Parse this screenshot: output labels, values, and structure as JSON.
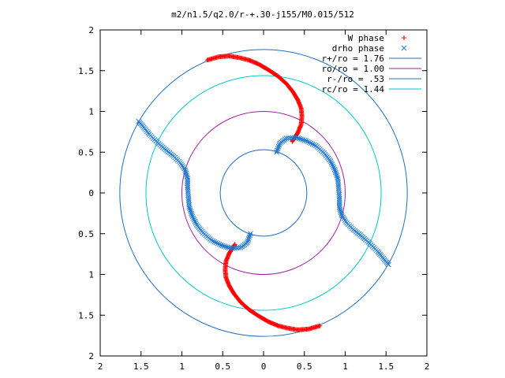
{
  "chart_data": {
    "type": "scatter",
    "title": "m2/n1.5/q2.0/r-+.30-j155/M0.015/512",
    "xlabel": "",
    "ylabel": "",
    "xlim": [
      -2,
      2
    ],
    "ylim": [
      -2,
      2
    ],
    "x_tick_labels": [
      "2",
      "1.5",
      "1",
      "0.5",
      "0",
      "0.5",
      "1",
      "1.5",
      "2"
    ],
    "y_tick_labels": [
      "2",
      "1.5",
      "1",
      "0.5",
      "0",
      "0.5",
      "1",
      "1.5",
      "2"
    ],
    "tick_values": [
      -2,
      -1.5,
      -1,
      -0.5,
      0,
      0.5,
      1,
      1.5,
      2
    ],
    "grid": false,
    "legend_position": "top-right",
    "circles": [
      {
        "name": "r+/ro = 1.76",
        "r": 1.76,
        "color": "#1f6fbf"
      },
      {
        "name": "ro/ro = 1.00",
        "r": 1.0,
        "color": "#a020a0"
      },
      {
        "name": "r-/ro = .53",
        "r": 0.53,
        "color": "#1f6fbf"
      },
      {
        "name": "rc/ro = 1.44",
        "r": 1.44,
        "color": "#00c8c8"
      }
    ],
    "series": [
      {
        "name": "W phase",
        "marker": "+",
        "color": "#ff0000",
        "arms": [
          [
            [
              0.35,
              0.63
            ],
            [
              0.42,
              0.74
            ],
            [
              0.46,
              0.84
            ],
            [
              0.47,
              0.94
            ],
            [
              0.46,
              1.04
            ],
            [
              0.42,
              1.14
            ],
            [
              0.36,
              1.24
            ],
            [
              0.28,
              1.34
            ],
            [
              0.18,
              1.43
            ],
            [
              0.06,
              1.51
            ],
            [
              -0.06,
              1.58
            ],
            [
              -0.18,
              1.63
            ],
            [
              -0.3,
              1.66
            ],
            [
              -0.42,
              1.68
            ],
            [
              -0.55,
              1.67
            ],
            [
              -0.69,
              1.63
            ]
          ],
          [
            [
              -0.35,
              -0.63
            ],
            [
              -0.42,
              -0.74
            ],
            [
              -0.46,
              -0.84
            ],
            [
              -0.47,
              -0.94
            ],
            [
              -0.46,
              -1.04
            ],
            [
              -0.42,
              -1.14
            ],
            [
              -0.36,
              -1.24
            ],
            [
              -0.28,
              -1.34
            ],
            [
              -0.18,
              -1.43
            ],
            [
              -0.06,
              -1.51
            ],
            [
              0.06,
              -1.58
            ],
            [
              0.18,
              -1.63
            ],
            [
              0.3,
              -1.66
            ],
            [
              0.42,
              -1.68
            ],
            [
              0.55,
              -1.67
            ],
            [
              0.69,
              -1.63
            ]
          ]
        ]
      },
      {
        "name": "drho phase",
        "marker": "x",
        "color": "#1f77d0",
        "arms": [
          [
            [
              0.16,
              0.5
            ],
            [
              0.2,
              0.61
            ],
            [
              0.28,
              0.67
            ],
            [
              0.4,
              0.68
            ],
            [
              0.52,
              0.64
            ],
            [
              0.64,
              0.58
            ],
            [
              0.74,
              0.49
            ],
            [
              0.82,
              0.39
            ],
            [
              0.87,
              0.29
            ],
            [
              0.91,
              0.17
            ],
            [
              0.92,
              0.05
            ],
            [
              0.93,
              -0.07
            ],
            [
              0.93,
              -0.18
            ],
            [
              0.96,
              -0.28
            ],
            [
              1.02,
              -0.37
            ],
            [
              1.1,
              -0.45
            ],
            [
              1.2,
              -0.53
            ],
            [
              1.3,
              -0.62
            ],
            [
              1.4,
              -0.72
            ],
            [
              1.48,
              -0.82
            ],
            [
              1.53,
              -0.88
            ]
          ],
          [
            [
              -0.16,
              -0.5
            ],
            [
              -0.2,
              -0.61
            ],
            [
              -0.28,
              -0.67
            ],
            [
              -0.4,
              -0.68
            ],
            [
              -0.52,
              -0.64
            ],
            [
              -0.64,
              -0.58
            ],
            [
              -0.74,
              -0.49
            ],
            [
              -0.82,
              -0.39
            ],
            [
              -0.87,
              -0.29
            ],
            [
              -0.91,
              -0.17
            ],
            [
              -0.92,
              -0.05
            ],
            [
              -0.93,
              0.07
            ],
            [
              -0.93,
              0.18
            ],
            [
              -0.96,
              0.28
            ],
            [
              -1.02,
              0.37
            ],
            [
              -1.1,
              0.45
            ],
            [
              -1.2,
              0.53
            ],
            [
              -1.3,
              0.62
            ],
            [
              -1.4,
              0.72
            ],
            [
              -1.48,
              0.82
            ],
            [
              -1.53,
              0.88
            ]
          ]
        ]
      }
    ]
  }
}
